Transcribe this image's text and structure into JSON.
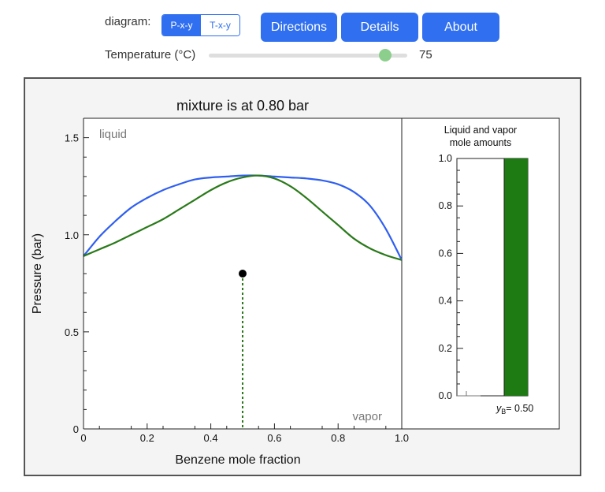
{
  "controls": {
    "diagram_label": "diagram:",
    "diagram_options": [
      "P-x-y",
      "T-x-y"
    ],
    "diagram_selected": "P-x-y",
    "buttons": {
      "directions": "Directions",
      "details": "Details",
      "about": "About"
    },
    "temperature_label": "Temperature (°C)",
    "temperature_value": "75",
    "temperature_fraction": 0.85
  },
  "colors": {
    "accent": "#2f6ff0",
    "bubble_curve": "#2f5ff0",
    "dew_curve": "#2a7a1a",
    "vapor_bar": "#1e7a12",
    "slider_thumb": "#8ccf8c"
  },
  "chart_data": [
    {
      "type": "line",
      "title": "mixture is at 0.80 bar",
      "xlabel": "Benzene mole fraction",
      "ylabel": "Pressure (bar)",
      "xlim": [
        0,
        1.0
      ],
      "ylim": [
        0,
        1.6
      ],
      "xticks": [
        "0",
        "0.2",
        "0.4",
        "0.6",
        "0.8",
        "1.0"
      ],
      "yticks": [
        "0",
        "0.5",
        "1.0",
        "1.5"
      ],
      "region_labels": {
        "top": "liquid",
        "bottom": "vapor"
      },
      "series": [
        {
          "x": [
            0,
            0.05,
            0.1,
            0.15,
            0.2,
            0.25,
            0.3,
            0.35,
            0.4,
            0.45,
            0.5,
            0.55,
            0.6,
            0.65,
            0.7,
            0.75,
            0.8,
            0.85,
            0.9,
            0.95,
            1.0
          ],
          "y": [
            0.89,
            0.99,
            1.07,
            1.14,
            1.19,
            1.23,
            1.26,
            1.285,
            1.295,
            1.3,
            1.305,
            1.305,
            1.3,
            1.295,
            1.29,
            1.28,
            1.26,
            1.22,
            1.15,
            1.03,
            0.87
          ]
        },
        {
          "x": [
            0,
            0.05,
            0.1,
            0.15,
            0.2,
            0.25,
            0.3,
            0.35,
            0.4,
            0.45,
            0.5,
            0.55,
            0.6,
            0.65,
            0.7,
            0.75,
            0.8,
            0.85,
            0.9,
            0.95,
            1.0
          ],
          "y": [
            0.89,
            0.925,
            0.96,
            1.0,
            1.04,
            1.08,
            1.13,
            1.18,
            1.23,
            1.27,
            1.295,
            1.305,
            1.29,
            1.25,
            1.19,
            1.12,
            1.05,
            0.98,
            0.93,
            0.895,
            0.87
          ]
        }
      ],
      "point": {
        "x": 0.5,
        "y": 0.8
      }
    },
    {
      "type": "bar",
      "title": "Liquid and vapor mole amounts",
      "ylim": [
        0,
        1.0
      ],
      "yticks": [
        "0.0",
        "0.2",
        "0.4",
        "0.6",
        "0.8",
        "1.0"
      ],
      "categories": [
        "liquid",
        "vapor"
      ],
      "values": [
        0,
        1.0
      ],
      "caption_symbol": "y",
      "caption_subscript": "B",
      "caption_value": "= 0.50"
    }
  ]
}
